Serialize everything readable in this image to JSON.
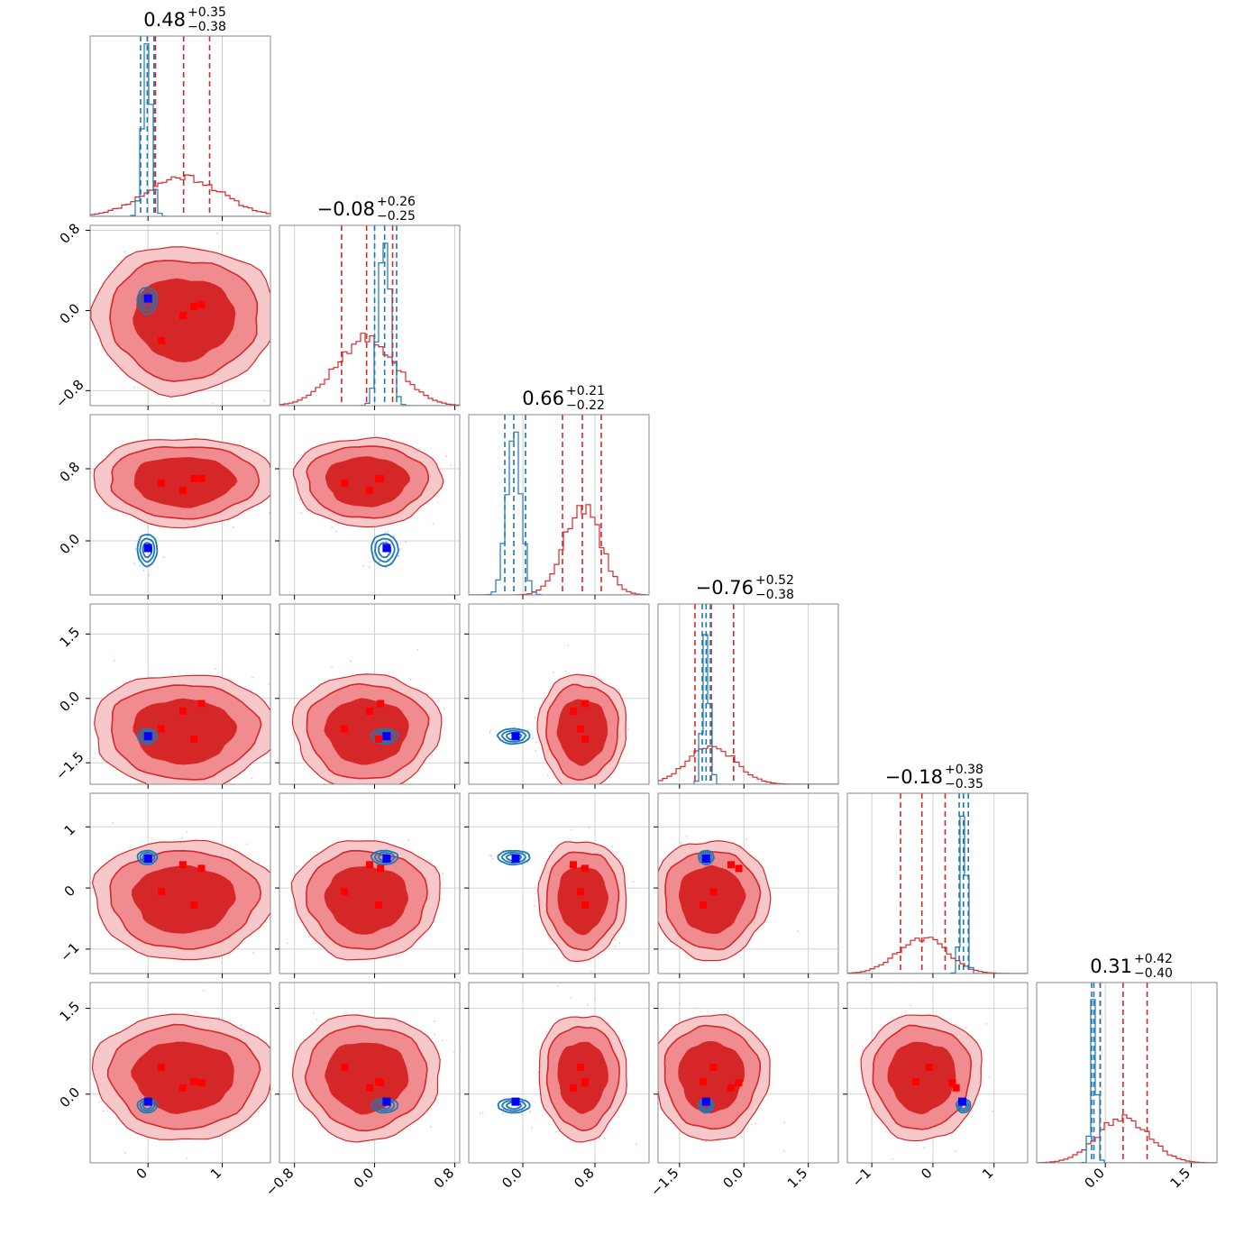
{
  "chart_data": {
    "type": "corner",
    "n_params": 6,
    "grid": true,
    "colors": {
      "red_light": "#f08c90",
      "red_mid": "#e0444a",
      "red_dark": "#d62728",
      "blue_line": "#1f77b4",
      "blue_marker": "#0000ff",
      "red_marker": "#ff0000",
      "frame": "#888888",
      "grid": "#d0d0d0"
    },
    "params": [
      {
        "title_main": "0.48",
        "title_plus": "+0.35",
        "title_minus": "−0.38",
        "range": [
          -0.78,
          1.65
        ],
        "ticks": [
          0,
          1
        ],
        "tick_labels": [
          "0",
          "1"
        ],
        "red_mean": 0.48,
        "red_sd": 0.5,
        "blue_mean": -0.01,
        "blue_sd": 0.06,
        "red_quantiles": [
          0.1,
          0.83
        ],
        "blue_quantiles": [
          -0.1,
          0.08
        ]
      },
      {
        "title_main": "−0.08",
        "title_plus": "+0.26",
        "title_minus": "−0.25",
        "range": [
          -0.95,
          0.85
        ],
        "ticks": [
          -0.8,
          0.0,
          0.8
        ],
        "tick_labels": [
          "−0.8",
          "0.0",
          "0.8"
        ],
        "red_mean": -0.08,
        "red_sd": 0.3,
        "blue_mean": 0.1,
        "blue_sd": 0.06,
        "red_quantiles": [
          -0.33,
          0.18
        ],
        "blue_quantiles": [
          0.0,
          0.22
        ]
      },
      {
        "title_main": "0.66",
        "title_plus": "+0.21",
        "title_minus": "−0.22",
        "range": [
          -0.6,
          1.4
        ],
        "ticks": [
          0.0,
          0.8
        ],
        "tick_labels": [
          "0.0",
          "0.8"
        ],
        "red_mean": 0.66,
        "red_sd": 0.2,
        "blue_mean": -0.1,
        "blue_sd": 0.08,
        "red_quantiles": [
          0.44,
          0.87
        ],
        "blue_quantiles": [
          -0.2,
          0.03
        ]
      },
      {
        "title_main": "−0.76",
        "title_plus": "+0.52",
        "title_minus": "−0.38",
        "range": [
          -2.0,
          2.2
        ],
        "ticks": [
          -1.5,
          0.0,
          1.5
        ],
        "tick_labels": [
          "−1.5",
          "0.0",
          "1.5"
        ],
        "red_mean": -0.76,
        "red_sd": 0.55,
        "blue_mean": -0.88,
        "blue_sd": 0.08,
        "red_quantiles": [
          -1.14,
          -0.24
        ],
        "blue_quantiles": [
          -0.97,
          -0.78
        ]
      },
      {
        "title_main": "−0.18",
        "title_plus": "+0.38",
        "title_minus": "−0.35",
        "range": [
          -1.4,
          1.55
        ],
        "ticks": [
          -1,
          0,
          1
        ],
        "tick_labels": [
          "−1",
          "0",
          "1"
        ],
        "red_mean": -0.18,
        "red_sd": 0.4,
        "blue_mean": 0.5,
        "blue_sd": 0.05,
        "red_quantiles": [
          -0.53,
          0.2
        ],
        "blue_quantiles": [
          0.43,
          0.58
        ]
      },
      {
        "title_main": "0.31",
        "title_plus": "+0.42",
        "title_minus": "−0.40",
        "range": [
          -1.2,
          1.95
        ],
        "ticks": [
          0.0,
          1.5
        ],
        "tick_labels": [
          "0.0",
          "1.5"
        ],
        "red_mean": 0.31,
        "red_sd": 0.45,
        "blue_mean": -0.2,
        "blue_sd": 0.05,
        "red_quantiles": [
          -0.09,
          0.73
        ],
        "blue_quantiles": [
          -0.24,
          -0.09
        ]
      }
    ],
    "red_markers": [
      [
        0.72,
        0.06,
        0.69,
        -0.12,
        0.32,
        0.2
      ],
      [
        0.62,
        0.04,
        0.69,
        -0.95,
        -0.28,
        0.22
      ],
      [
        0.47,
        -0.05,
        0.56,
        -0.3,
        0.38,
        0.11
      ],
      [
        0.18,
        -0.3,
        0.64,
        -0.71,
        -0.06,
        0.47
      ]
    ],
    "blue_marker": [
      0.0,
      0.12,
      -0.08,
      -0.88,
      0.48,
      -0.13
    ]
  }
}
